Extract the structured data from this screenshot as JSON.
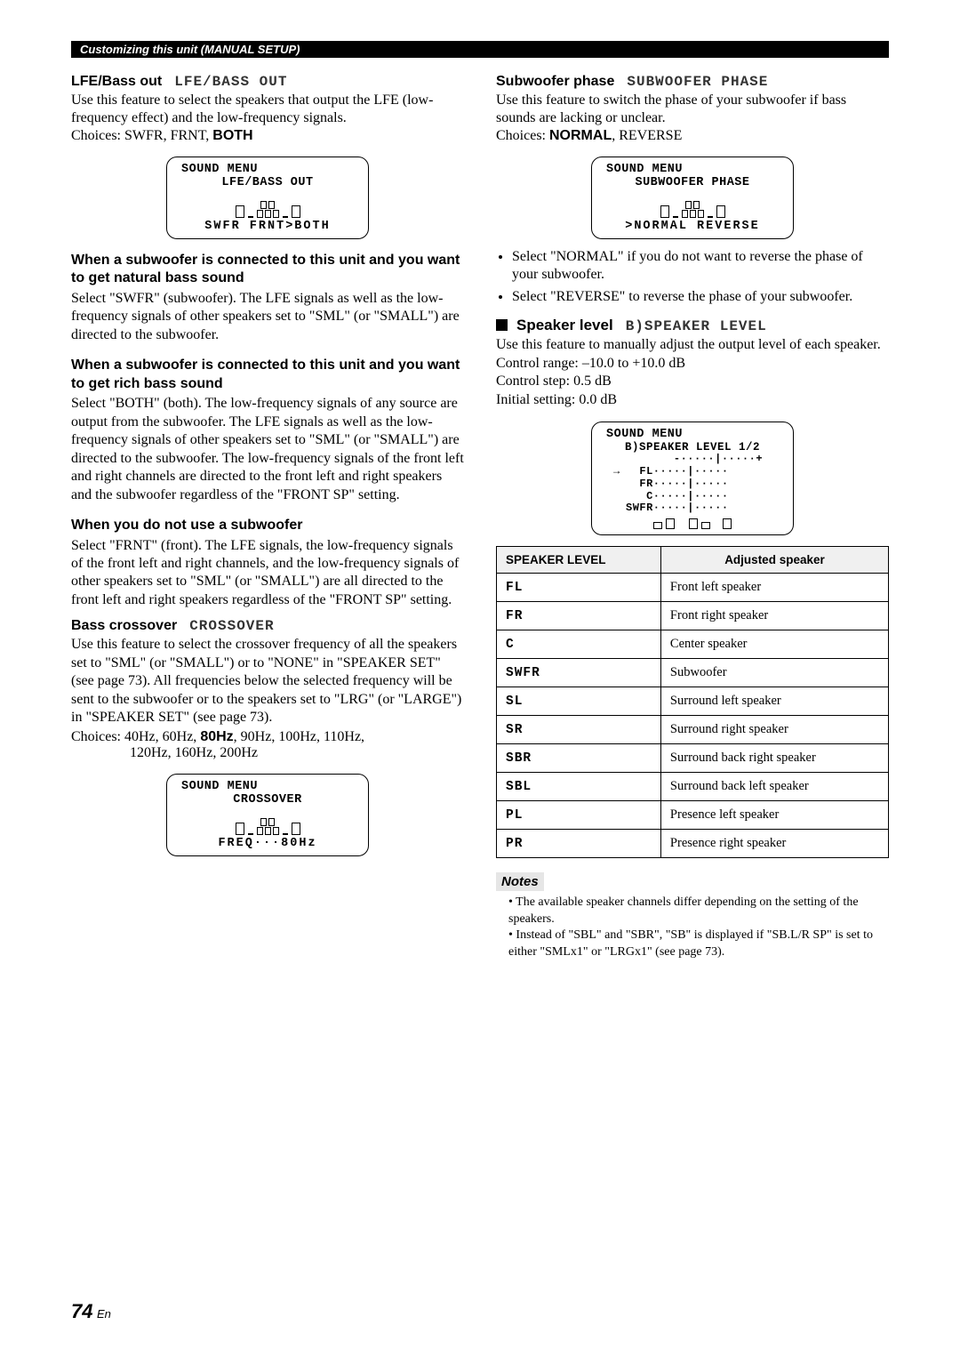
{
  "header_bar": "Customizing this unit (MANUAL SETUP)",
  "left": {
    "lfe": {
      "title": "LFE/Bass out",
      "lcd_label": "LFE/BASS OUT",
      "body": "Use this feature to select the speakers that output the LFE (low-frequency effect) and the low-frequency signals.",
      "choices_prefix": "Choices: SWFR, FRNT, ",
      "choices_bold": "BOTH",
      "lcd": {
        "l1": "SOUND MENU",
        "l2": "LFE/BASS OUT",
        "l3": "SWFR FRNT>BOTH"
      }
    },
    "sub1_head": "When a subwoofer is connected to this unit and you want to get natural bass sound",
    "sub1_body": "Select \"SWFR\" (subwoofer). The LFE signals as well as the low-frequency signals of other speakers set to \"SML\" (or \"SMALL\") are directed to the subwoofer.",
    "sub2_head": "When a subwoofer is connected to this unit and you want to get rich bass sound",
    "sub2_body": "Select \"BOTH\" (both). The low-frequency signals of any source are output from the subwoofer. The LFE signals as well as the low-frequency signals of other speakers set to \"SML\" (or \"SMALL\") are directed to the subwoofer. The low-frequency signals of the front left and right channels are directed to the front left and right speakers and the subwoofer regardless of the \"FRONT SP\" setting.",
    "sub3_head": "When you do not use a subwoofer",
    "sub3_body": "Select \"FRNT\" (front). The LFE signals, the low-frequency signals of the front left and right channels, and the low-frequency signals of other speakers set to \"SML\" (or \"SMALL\") are all directed to the front left and right speakers regardless of the \"FRONT SP\" setting.",
    "cross": {
      "title": "Bass crossover",
      "lcd_label": "CROSSOVER",
      "body": "Use this feature to select the crossover frequency of all the speakers set to \"SML\" (or \"SMALL\") or to \"NONE\" in \"SPEAKER SET\" (see page 73). All frequencies below the selected frequency will be sent to the subwoofer or to the speakers set to \"LRG\" (or \"LARGE\") in \"SPEAKER SET\" (see page 73).",
      "choices_l1_prefix": "Choices: 40Hz, 60Hz, ",
      "choices_l1_bold": "80Hz",
      "choices_l1_suffix": ", 90Hz, 100Hz, 110Hz,",
      "choices_l2": "120Hz, 160Hz, 200Hz",
      "lcd": {
        "l1": "SOUND MENU",
        "l2": "CROSSOVER",
        "l3": "FREQ···80Hz"
      }
    }
  },
  "right": {
    "swp": {
      "title": "Subwoofer phase",
      "lcd_label": "SUBWOOFER PHASE",
      "body": "Use this feature to switch the phase of your subwoofer if bass sounds are lacking or unclear.",
      "choices_prefix": "Choices: ",
      "choices_bold": "NORMAL",
      "choices_suffix": ", REVERSE",
      "lcd": {
        "l1": "SOUND MENU",
        "l2": "SUBWOOFER PHASE",
        "l3": ">NORMAL  REVERSE"
      }
    },
    "bullets": [
      "Select \"NORMAL\" if you do not want to reverse the phase of your subwoofer.",
      "Select \"REVERSE\" to reverse the phase of your subwoofer."
    ],
    "spklvl": {
      "title": "Speaker level",
      "lcd_label": "B)SPEAKER LEVEL",
      "body": "Use this feature to manually adjust the output level of each speaker.",
      "range": "Control range: –10.0 to +10.0 dB",
      "step": "Control step: 0.5 dB",
      "init": "Initial setting: 0.0 dB",
      "lcd": {
        "l1": "SOUND MENU",
        "l2": "B)SPEAKER LEVEL 1/2",
        "scale": "       -·····|·····+",
        "r1": "  FL·····|·····",
        "r2": "  FR·····|·····",
        "r3": "   C·····|·····",
        "r4": "SWFR·····|·····"
      }
    },
    "table": {
      "h1": "SPEAKER LEVEL",
      "h2": "Adjusted speaker",
      "rows": [
        [
          "FL",
          "Front left speaker"
        ],
        [
          "FR",
          "Front right speaker"
        ],
        [
          "C",
          "Center speaker"
        ],
        [
          "SWFR",
          "Subwoofer"
        ],
        [
          "SL",
          "Surround left speaker"
        ],
        [
          "SR",
          "Surround right speaker"
        ],
        [
          "SBR",
          "Surround back right speaker"
        ],
        [
          "SBL",
          "Surround back left speaker"
        ],
        [
          "PL",
          "Presence left speaker"
        ],
        [
          "PR",
          "Presence right speaker"
        ]
      ]
    },
    "notes_head": "Notes",
    "notes": [
      "The available speaker channels differ depending on the setting of the speakers.",
      "Instead of \"SBL\" and \"SBR\", \"SB\" is displayed if \"SB.L/R SP\" is set to either \"SMLx1\" or \"LRGx1\" (see page 73)."
    ]
  },
  "page_num": "74",
  "page_en": "En"
}
